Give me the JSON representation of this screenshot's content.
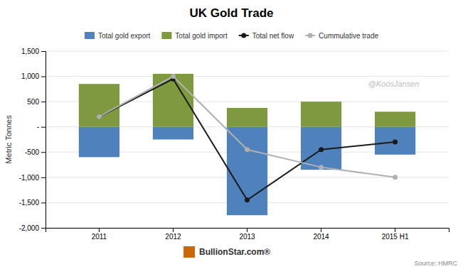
{
  "chart_data": {
    "type": "bar",
    "title": "UK Gold Trade",
    "ylabel": "Metric Tonnes",
    "categories": [
      "2011",
      "2012",
      "2013",
      "2014",
      "2015 H1"
    ],
    "series": [
      {
        "name": "Total gold export",
        "type": "bar",
        "color": "#4f81bd",
        "values": [
          -600,
          -250,
          -1750,
          -850,
          -550
        ]
      },
      {
        "name": "Total gold import",
        "type": "bar",
        "color": "#7f9a3e",
        "values": [
          850,
          1050,
          375,
          500,
          300
        ]
      },
      {
        "name": "Total net flow",
        "type": "line",
        "color": "#1a1a1a",
        "marker": "circle",
        "values": [
          200,
          950,
          -1450,
          -450,
          -300
        ]
      },
      {
        "name": "Cummulative trade",
        "type": "line",
        "color": "#b0b0b0",
        "marker": "circle",
        "values": [
          200,
          1000,
          -450,
          -800,
          -1000
        ]
      }
    ],
    "ylim": [
      -2000,
      1500
    ],
    "yticks": [
      {
        "value": -2000,
        "label": "-2,000"
      },
      {
        "value": -1500,
        "label": "-1,500"
      },
      {
        "value": -1000,
        "label": "-1,000"
      },
      -500,
      {
        "value": 0,
        "label": "-"
      },
      500,
      {
        "value": 1000,
        "label": "1,000"
      },
      {
        "value": 1500,
        "label": "1,500"
      }
    ],
    "grid": true,
    "legend": "top",
    "annotations": [
      "@KoosJansen",
      "Source: HMRC",
      "BullionStar.com®"
    ]
  }
}
